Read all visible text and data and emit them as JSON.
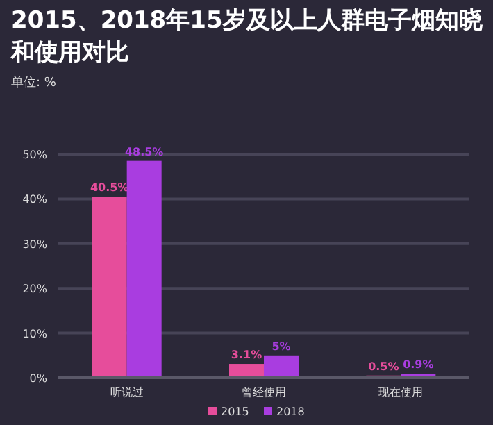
{
  "chart_data": {
    "type": "bar",
    "title": "2015、2018年15岁及以上人群电子烟知晓和使用对比",
    "subtitle": "单位: %",
    "categories": [
      "听说过",
      "曾经使用",
      "现在使用"
    ],
    "series": [
      {
        "name": "2015",
        "color": "#e64d9b",
        "values": [
          40.5,
          3.1,
          0.5
        ],
        "value_labels": [
          "40.5%",
          "3.1%",
          "0.5%"
        ]
      },
      {
        "name": "2018",
        "color": "#a93de0",
        "values": [
          48.5,
          5,
          0.9
        ],
        "value_labels": [
          "48.5%",
          "5%",
          "0.9%"
        ]
      }
    ],
    "ylim": [
      0,
      50
    ],
    "yticks": [
      {
        "value": 0,
        "label": "0%"
      },
      {
        "value": 10,
        "label": "10%"
      },
      {
        "value": 20,
        "label": "20%"
      },
      {
        "value": 30,
        "label": "30%"
      },
      {
        "value": 40,
        "label": "40%"
      },
      {
        "value": 50,
        "label": "50%"
      }
    ],
    "grid": "y",
    "legend": "bottom"
  }
}
